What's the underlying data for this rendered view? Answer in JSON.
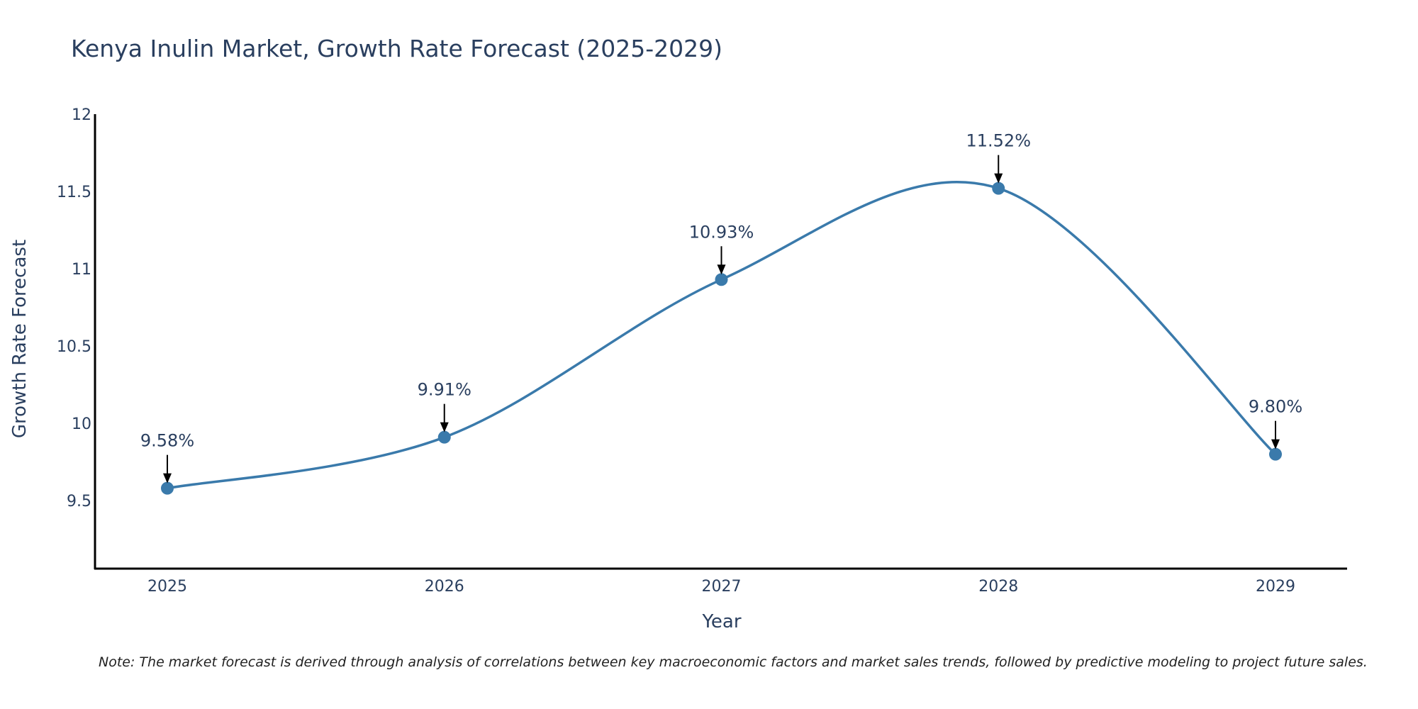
{
  "chart_data": {
    "type": "line",
    "title": "Kenya Inulin Market, Growth Rate Forecast (2025-2029)",
    "xlabel": "Year",
    "ylabel": "Growth Rate Forecast",
    "categories": [
      "2025",
      "2026",
      "2027",
      "2028",
      "2029"
    ],
    "values": [
      9.58,
      9.91,
      10.93,
      11.52,
      9.8
    ],
    "data_labels": [
      "9.58%",
      "9.91%",
      "10.93%",
      "11.52%",
      "9.80%"
    ],
    "ylim": [
      9.06,
      12
    ],
    "yticks": [
      9.5,
      10,
      10.5,
      11,
      11.5,
      12
    ],
    "ytick_labels": [
      "9.5",
      "10",
      "10.5",
      "11",
      "11.5",
      "12"
    ],
    "series_color": "#3a7aab",
    "line_shape": "spline",
    "grid": false,
    "note": "Note: The market forecast is derived through analysis of correlations between key macroeconomic factors and market sales trends, followed by predictive modeling to project future sales."
  }
}
